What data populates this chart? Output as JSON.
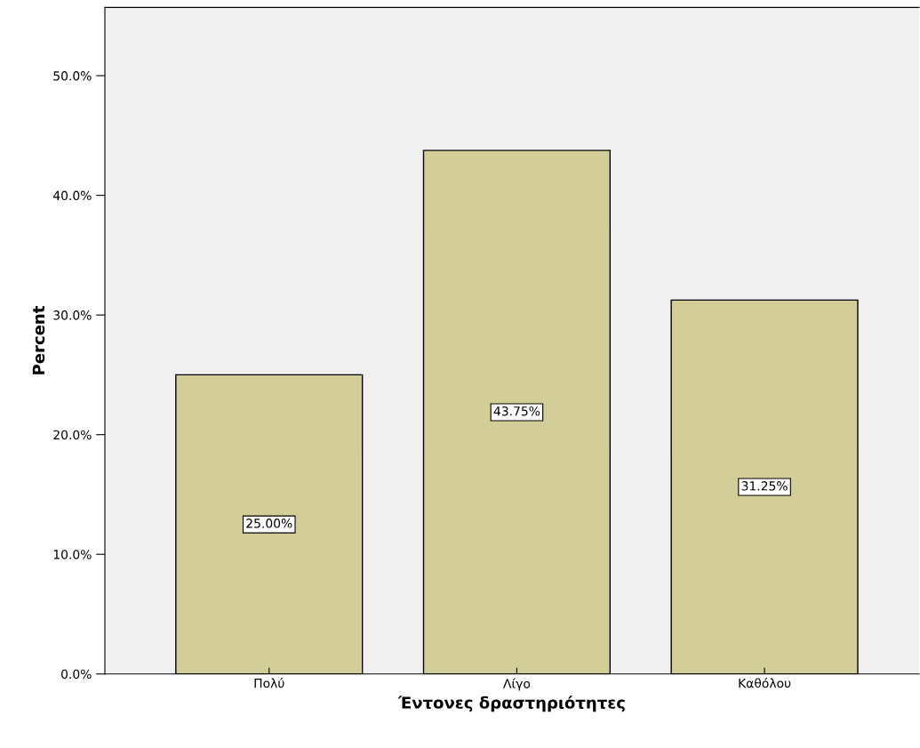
{
  "chart_data": {
    "type": "bar",
    "xlabel": "Έντονες δραστηριότητες",
    "ylabel": "Percent",
    "categories": [
      "Πολύ",
      "Λίγο",
      "Καθόλου"
    ],
    "values": [
      25.0,
      43.75,
      31.25
    ],
    "value_labels": [
      "25.00%",
      "43.75%",
      "31.25%"
    ],
    "color": "#d3ce97",
    "ylim": [
      0,
      55.7
    ],
    "yticks": [
      {
        "value": 0,
        "label": "0.0%"
      },
      {
        "value": 10,
        "label": "10.0%"
      },
      {
        "value": 20,
        "label": "20.0%"
      },
      {
        "value": 30,
        "label": "30.0%"
      },
      {
        "value": 40,
        "label": "40.0%"
      },
      {
        "value": 50,
        "label": "50.0%"
      }
    ],
    "grid": false,
    "legend": false
  }
}
